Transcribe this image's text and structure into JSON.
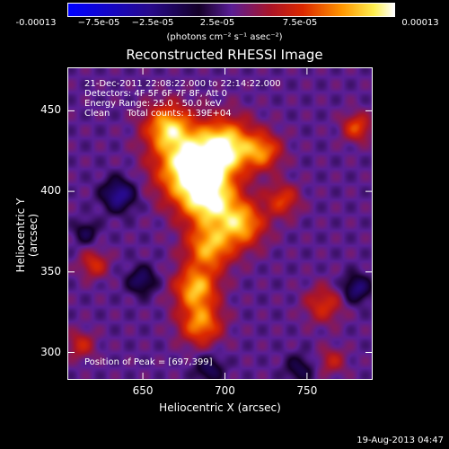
{
  "colorbar": {
    "tick_labels": [
      "-0.00013",
      "−7.5e-05",
      "−2.5e-05",
      "2.5e-05",
      "7.5e-05",
      "0.00013"
    ],
    "unit_label": "(photons cm⁻² s⁻¹ asec⁻²)"
  },
  "chart_data": {
    "type": "heatmap",
    "title": "Reconstructed RHESSI Image",
    "xlabel": "Heliocentric X (arcsec)",
    "ylabel": "Heliocentric Y (arcsec)",
    "xlim": [
      604,
      790
    ],
    "ylim": [
      283,
      477
    ],
    "x_ticks": [
      "650",
      "700",
      "750"
    ],
    "x_tick_values": [
      650,
      700,
      750
    ],
    "y_ticks": [
      "300",
      "350",
      "400",
      "450"
    ],
    "y_tick_values": [
      300,
      350,
      400,
      450
    ],
    "colorbar_range": [
      -0.00013,
      0.00013
    ],
    "peak_position": [
      697,
      399
    ],
    "sources": [
      {
        "x": 678,
        "y": 415,
        "sigma": 14,
        "amp": 1.0
      },
      {
        "x": 700,
        "y": 428,
        "sigma": 12,
        "amp": 0.9
      },
      {
        "x": 665,
        "y": 440,
        "sigma": 10,
        "amp": 0.75
      },
      {
        "x": 690,
        "y": 395,
        "sigma": 12,
        "amp": 0.85
      },
      {
        "x": 710,
        "y": 380,
        "sigma": 10,
        "amp": 0.7
      },
      {
        "x": 690,
        "y": 365,
        "sigma": 10,
        "amp": 0.7
      },
      {
        "x": 682,
        "y": 340,
        "sigma": 9,
        "amp": 0.75
      },
      {
        "x": 685,
        "y": 318,
        "sigma": 9,
        "amp": 0.65
      },
      {
        "x": 723,
        "y": 425,
        "sigma": 8,
        "amp": 0.55
      },
      {
        "x": 735,
        "y": 395,
        "sigma": 7,
        "amp": 0.45
      },
      {
        "x": 760,
        "y": 330,
        "sigma": 8,
        "amp": 0.4
      },
      {
        "x": 780,
        "y": 440,
        "sigma": 6,
        "amp": 0.5
      },
      {
        "x": 620,
        "y": 355,
        "sigma": 6,
        "amp": 0.4
      },
      {
        "x": 612,
        "y": 305,
        "sigma": 6,
        "amp": 0.35
      },
      {
        "x": 765,
        "y": 295,
        "sigma": 6,
        "amp": 0.3
      },
      {
        "x": 635,
        "y": 398,
        "sigma": 7,
        "amp": -0.55
      },
      {
        "x": 649,
        "y": 345,
        "sigma": 6,
        "amp": -0.4
      },
      {
        "x": 780,
        "y": 340,
        "sigma": 6,
        "amp": -0.45
      },
      {
        "x": 690,
        "y": 290,
        "sigma": 6,
        "amp": -0.35
      },
      {
        "x": 745,
        "y": 290,
        "sigma": 6,
        "amp": -0.3
      },
      {
        "x": 615,
        "y": 375,
        "sigma": 5,
        "amp": -0.3
      }
    ]
  },
  "annotations": {
    "time_range": "21-Dec-2011 22:08:22.000 to 22:14:22.000",
    "detectors": "Detectors: 4F 5F 6F 7F 8F, Att 0",
    "energy": "Energy Range: 25.0 - 50.0 keV",
    "clean": "Clean      Total counts: 1.39E+04",
    "peak": "Position of Peak = [697,399]"
  },
  "footer": {
    "date": "19-Aug-2013 04:47"
  }
}
